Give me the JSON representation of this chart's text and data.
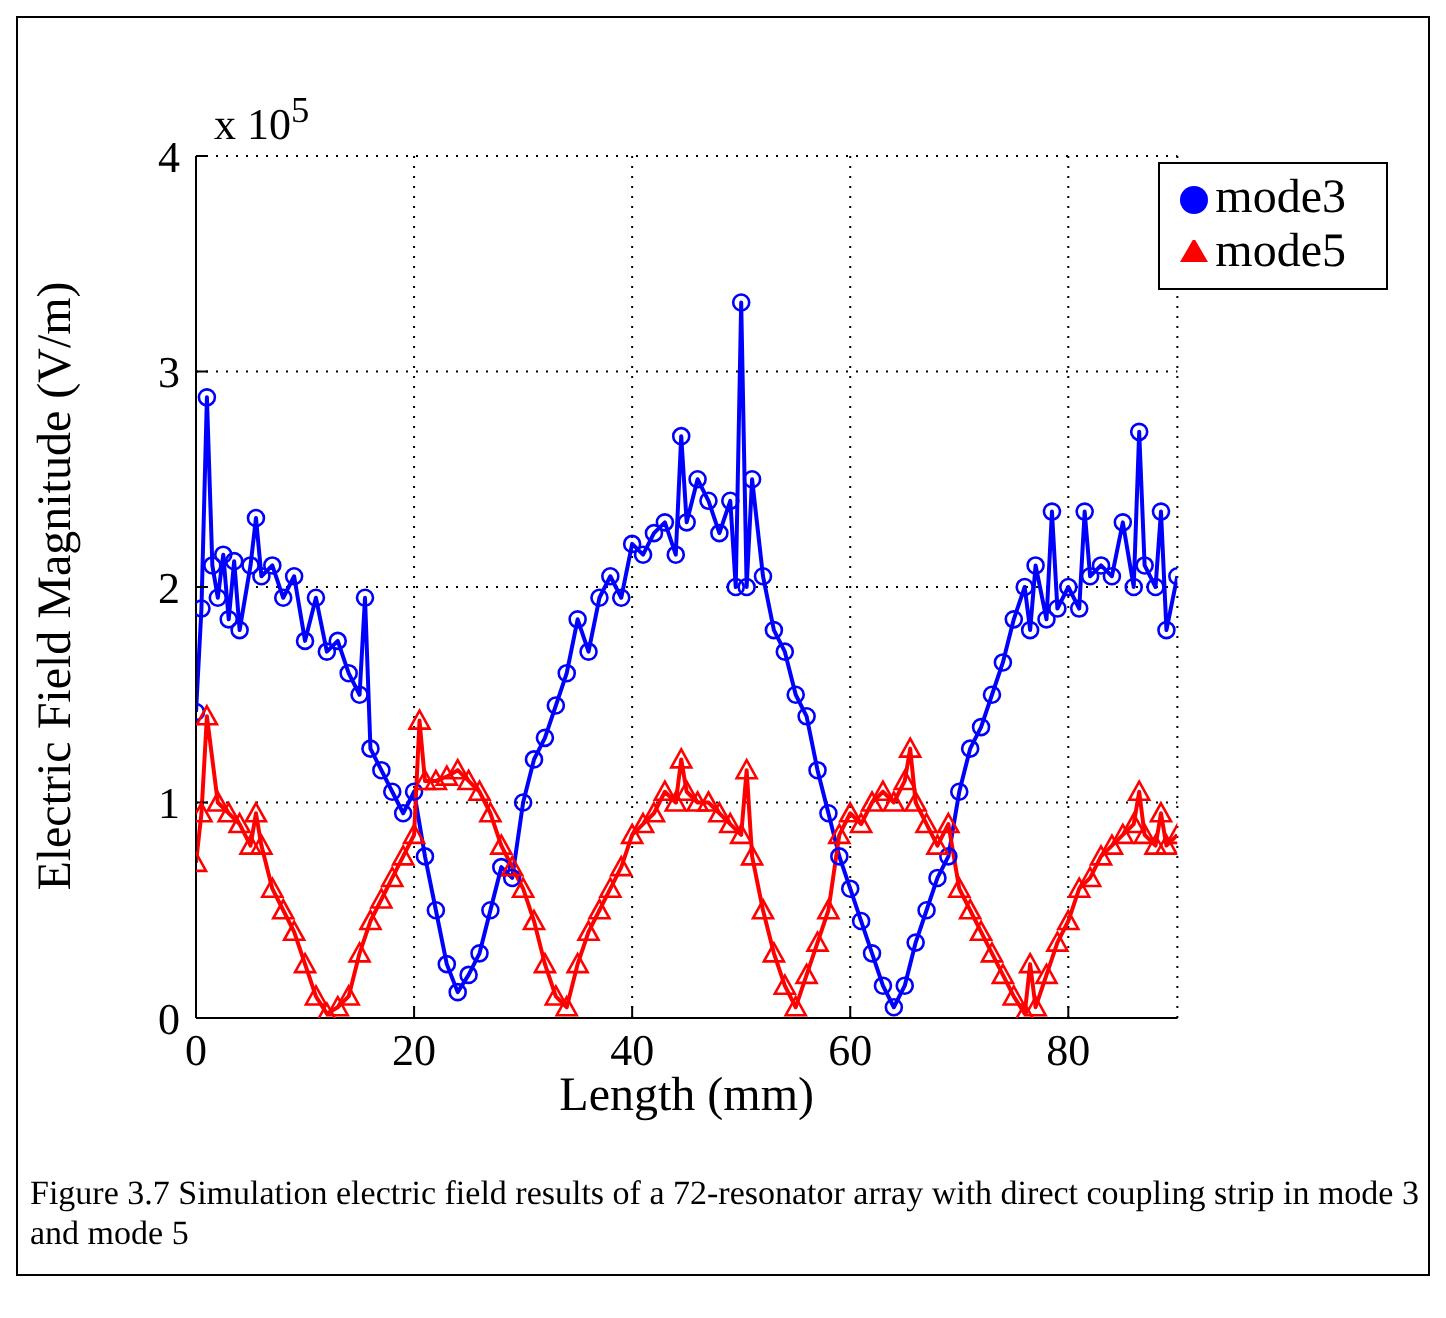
{
  "chart_data": {
    "type": "line",
    "xlabel": "Length (mm)",
    "ylabel": "Electric Field Magnitude (V/m)",
    "annotations": [
      "x 10$^{5}$",
      "Figure 3.7 Simulation electric field results of a 72-resonator array with direct coupling strip in mode 3 and mode 5"
    ],
    "xlim": [
      0,
      90
    ],
    "xticks": [
      0,
      20,
      40,
      60,
      80
    ],
    "ylim": [
      0,
      4
    ],
    "yticks": [
      0,
      1,
      2,
      3,
      4
    ],
    "grid": true,
    "legend": "top right",
    "line_style": "solid",
    "series": [
      {
        "name": "mode3",
        "color": "#0000ff",
        "marker": "circle",
        "x": [
          0,
          0.5,
          1,
          1.5,
          2,
          2.5,
          3,
          3.5,
          4,
          5,
          5.5,
          6,
          7,
          8,
          9,
          10,
          11,
          12,
          13,
          14,
          15,
          15.5,
          16,
          17,
          18,
          19,
          20,
          21,
          22,
          23,
          24,
          25,
          26,
          27,
          28,
          29,
          30,
          31,
          32,
          33,
          34,
          35,
          36,
          37,
          38,
          39,
          40,
          41,
          42,
          43,
          44,
          44.5,
          45,
          46,
          47,
          48,
          49,
          49.5,
          50,
          50.5,
          51,
          52,
          53,
          54,
          55,
          56,
          57,
          58,
          59,
          60,
          61,
          62,
          63,
          64,
          65,
          66,
          67,
          68,
          69,
          70,
          71,
          72,
          73,
          74,
          75,
          76,
          76.5,
          77,
          78,
          78.5,
          79,
          80,
          81,
          81.5,
          82,
          83,
          84,
          85,
          86,
          86.5,
          87,
          88,
          88.5,
          89,
          90
        ],
        "values": [
          1.42,
          1.9,
          2.88,
          2.1,
          1.95,
          2.15,
          1.85,
          2.12,
          1.8,
          2.1,
          2.32,
          2.05,
          2.1,
          1.95,
          2.05,
          1.75,
          1.95,
          1.7,
          1.75,
          1.6,
          1.5,
          1.95,
          1.25,
          1.15,
          1.05,
          0.95,
          1.05,
          0.75,
          0.5,
          0.25,
          0.12,
          0.2,
          0.3,
          0.5,
          0.7,
          0.65,
          1.0,
          1.2,
          1.3,
          1.45,
          1.6,
          1.85,
          1.7,
          1.95,
          2.05,
          1.95,
          2.2,
          2.15,
          2.25,
          2.3,
          2.15,
          2.7,
          2.3,
          2.5,
          2.4,
          2.25,
          2.4,
          2.0,
          3.32,
          2.0,
          2.5,
          2.05,
          1.8,
          1.7,
          1.5,
          1.4,
          1.15,
          0.95,
          0.75,
          0.6,
          0.45,
          0.3,
          0.15,
          0.05,
          0.15,
          0.35,
          0.5,
          0.65,
          0.75,
          1.05,
          1.25,
          1.35,
          1.5,
          1.65,
          1.85,
          2.0,
          1.8,
          2.1,
          1.85,
          2.35,
          1.9,
          2.0,
          1.9,
          2.35,
          2.05,
          2.1,
          2.05,
          2.3,
          2.0,
          2.72,
          2.1,
          2.0,
          2.35,
          1.8,
          2.05
        ]
      },
      {
        "name": "mode5",
        "color": "#ff0000",
        "marker": "triangle",
        "x": [
          0,
          0.5,
          1,
          2,
          3,
          4,
          5,
          5.5,
          6,
          7,
          8,
          9,
          10,
          11,
          12,
          13,
          14,
          15,
          16,
          17,
          18,
          19,
          20,
          20.5,
          21,
          22,
          23,
          24,
          25,
          26,
          27,
          28,
          29,
          30,
          31,
          32,
          33,
          34,
          35,
          36,
          37,
          38,
          39,
          40,
          41,
          42,
          43,
          44,
          44.5,
          45,
          46,
          47,
          48,
          49,
          50,
          50.5,
          51,
          52,
          53,
          54,
          55,
          56,
          57,
          58,
          59,
          60,
          61,
          62,
          63,
          64,
          65,
          65.5,
          66,
          67,
          68,
          69,
          70,
          71,
          72,
          73,
          74,
          75,
          76,
          76.5,
          77,
          78,
          79,
          80,
          81,
          82,
          83,
          84,
          85,
          86,
          86.5,
          87,
          88,
          88.5,
          89,
          90
        ],
        "values": [
          0.72,
          0.95,
          1.4,
          1.0,
          0.95,
          0.9,
          0.8,
          0.95,
          0.8,
          0.6,
          0.5,
          0.4,
          0.25,
          0.1,
          0.02,
          0.05,
          0.1,
          0.3,
          0.45,
          0.55,
          0.65,
          0.75,
          0.85,
          1.38,
          1.1,
          1.1,
          1.12,
          1.15,
          1.1,
          1.05,
          0.95,
          0.8,
          0.7,
          0.6,
          0.45,
          0.25,
          0.1,
          0.05,
          0.25,
          0.4,
          0.5,
          0.6,
          0.7,
          0.85,
          0.9,
          0.95,
          1.05,
          1.0,
          1.2,
          1.05,
          1.0,
          1.0,
          0.95,
          0.9,
          0.85,
          1.15,
          0.75,
          0.5,
          0.3,
          0.15,
          0.05,
          0.2,
          0.35,
          0.5,
          0.85,
          0.95,
          0.9,
          1.0,
          1.05,
          1.0,
          1.1,
          1.25,
          1.0,
          0.9,
          0.8,
          0.9,
          0.6,
          0.5,
          0.4,
          0.3,
          0.2,
          0.1,
          0.02,
          0.25,
          0.05,
          0.2,
          0.35,
          0.45,
          0.6,
          0.65,
          0.75,
          0.8,
          0.85,
          0.9,
          1.05,
          0.85,
          0.8,
          0.95,
          0.8,
          0.85
        ]
      }
    ]
  }
}
